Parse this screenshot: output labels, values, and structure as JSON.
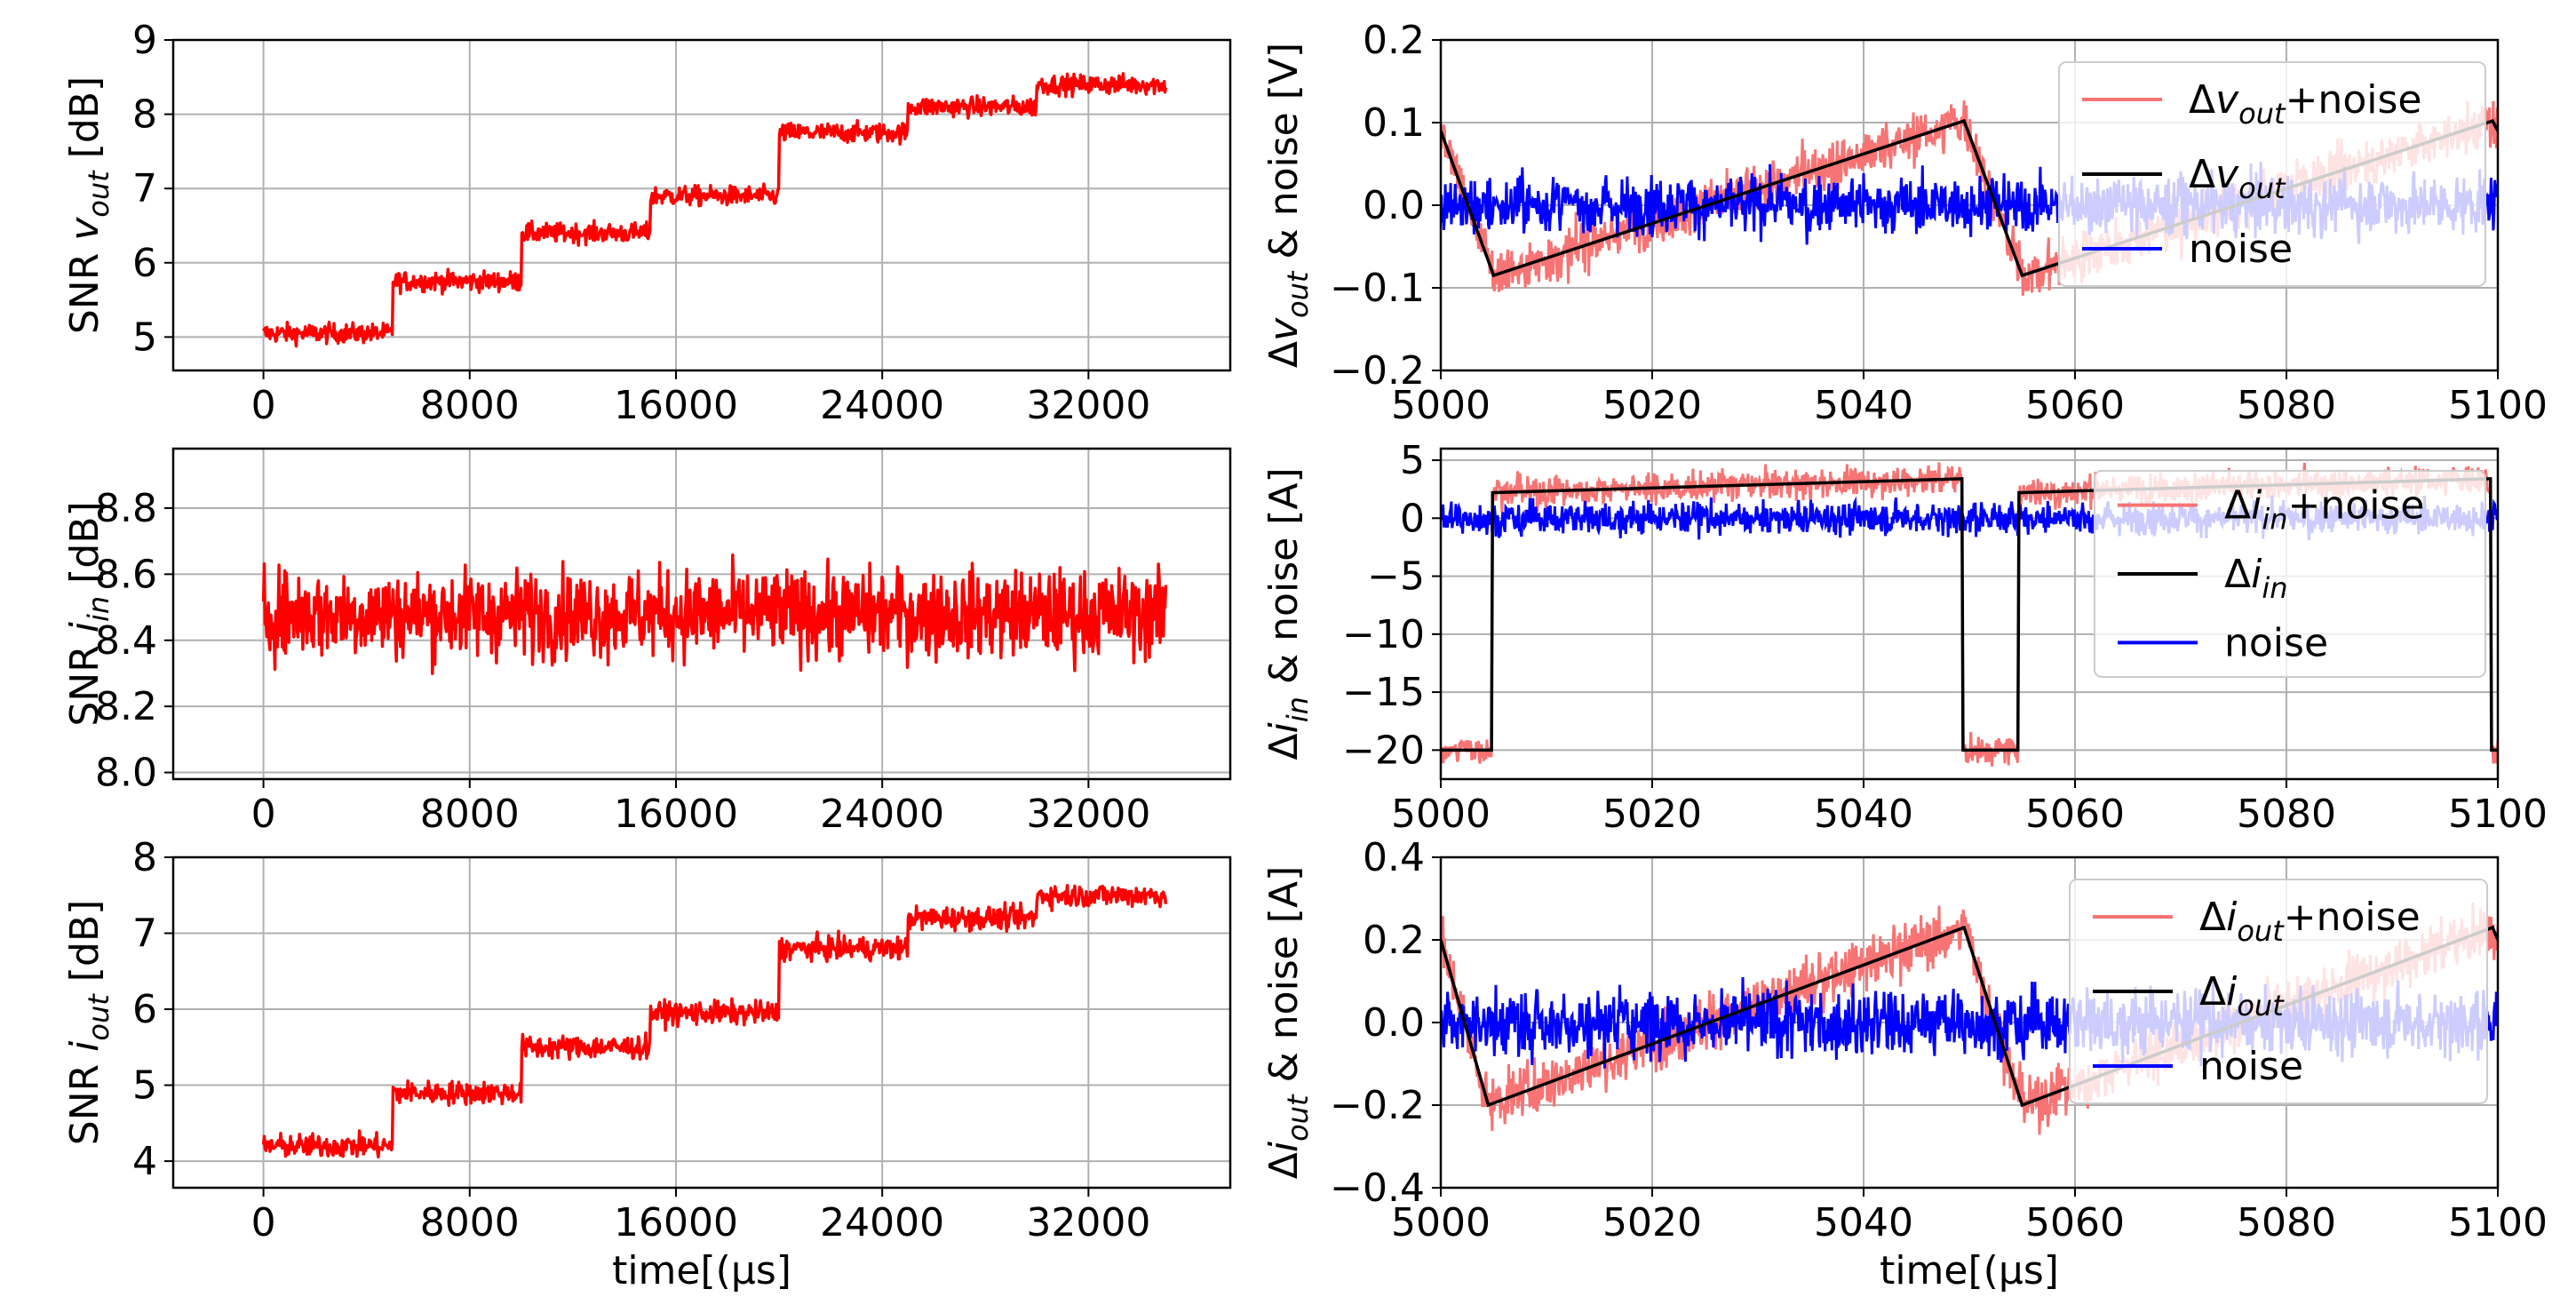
{
  "colors": {
    "snr": "#ff0000",
    "signal_noise": "#f87373",
    "signal": "#000000",
    "noise": "#0000ff",
    "grid": "#b0b0b0"
  },
  "chart_data": [
    {
      "id": "snr_vout",
      "type": "line",
      "ylabel_prefix": "SNR ",
      "ylabel_math": "v",
      "ylabel_sub": "out",
      "ylabel_suffix": " [dB]",
      "xlabel": "time[(μs]",
      "xlim": [
        -3500,
        37500
      ],
      "ylim": [
        4.55,
        9.0
      ],
      "xticks": [
        0,
        8000,
        16000,
        24000,
        32000
      ],
      "yticks": [
        5,
        6,
        7,
        8,
        9
      ],
      "series": [
        {
          "name": "SNR",
          "color": "#ff0000",
          "step_times": [
            0,
            5000,
            10000,
            15000,
            20000,
            25000,
            30000,
            35000
          ],
          "step_levels": [
            5.05,
            5.75,
            6.4,
            6.9,
            7.75,
            8.1,
            8.4
          ],
          "noise_amp": 0.13
        }
      ]
    },
    {
      "id": "dvout",
      "type": "line",
      "ylabel_prefix": "Δ",
      "ylabel_math": "v",
      "ylabel_sub": "out",
      "ylabel_suffix": " & noise [V]",
      "xlabel": "time[(μs]",
      "xlim": [
        5000,
        5100
      ],
      "ylim": [
        -0.2,
        0.2
      ],
      "xticks": [
        5000,
        5020,
        5040,
        5060,
        5080,
        5100
      ],
      "yticks": [
        -0.2,
        -0.1,
        0.0,
        0.1,
        0.2
      ],
      "ytick_labels": [
        "−0.2",
        "−0.1",
        "0.0",
        "0.1",
        "0.2"
      ],
      "signal_points": [
        [
          5000,
          0.09
        ],
        [
          5005,
          -0.085
        ],
        [
          5049.5,
          0.102
        ],
        [
          5055,
          -0.085
        ],
        [
          5099.5,
          0.102
        ],
        [
          5100,
          0.09
        ]
      ],
      "signal_noise_amp": 0.03,
      "noise_amp": 0.035,
      "legend": [
        {
          "name": "Δv_out+noise",
          "pre": "Δ",
          "math": "v",
          "sub": "out",
          "post": "+noise",
          "color": "#f87373"
        },
        {
          "name": "Δv_out",
          "pre": "Δ",
          "math": "v",
          "sub": "out",
          "post": "",
          "color": "#000000"
        },
        {
          "name": "noise",
          "pre": "noise",
          "math": "",
          "sub": "",
          "post": "",
          "color": "#0000ff"
        }
      ]
    },
    {
      "id": "snr_iin",
      "type": "line",
      "ylabel_prefix": "SNR ",
      "ylabel_math": "i",
      "ylabel_sub": "in",
      "ylabel_suffix": " [dB]",
      "xlabel": "time[(μs]",
      "xlim": [
        -3500,
        37500
      ],
      "ylim": [
        7.98,
        8.98
      ],
      "xticks": [
        0,
        8000,
        16000,
        24000,
        32000
      ],
      "yticks": [
        8.0,
        8.2,
        8.4,
        8.6,
        8.8
      ],
      "ytick_labels": [
        "8.0",
        "8.2",
        "8.4",
        "8.6",
        "8.8"
      ],
      "series": [
        {
          "name": "SNR",
          "color": "#ff0000",
          "step_times": [
            0,
            35000
          ],
          "step_levels": [
            8.48
          ],
          "noise_amp": 0.13
        }
      ]
    },
    {
      "id": "diin",
      "type": "line",
      "ylabel_prefix": "Δ",
      "ylabel_math": "i",
      "ylabel_sub": "in",
      "ylabel_suffix": " & noise [A]",
      "xlabel": "time[(μs]",
      "xlim": [
        5000,
        5100
      ],
      "ylim": [
        -22.5,
        6
      ],
      "xticks": [
        5000,
        5020,
        5040,
        5060,
        5080,
        5100
      ],
      "yticks": [
        -20,
        -15,
        -10,
        -5,
        0,
        5
      ],
      "ytick_labels": [
        "−20",
        "−15",
        "−10",
        "−5",
        "0",
        "5"
      ],
      "signal_points": [
        [
          5000,
          -20
        ],
        [
          5004.8,
          -20
        ],
        [
          5004.9,
          2.2
        ],
        [
          5049.3,
          3.4
        ],
        [
          5049.4,
          -20
        ],
        [
          5054.6,
          -20
        ],
        [
          5054.7,
          2.2
        ],
        [
          5099.3,
          3.4
        ],
        [
          5099.4,
          -20
        ],
        [
          5100,
          -20
        ]
      ],
      "signal_noise_amp": 1.3,
      "noise_amp": 1.4,
      "legend": [
        {
          "name": "Δi_in+noise",
          "pre": "Δ",
          "math": "i",
          "sub": "in",
          "post": "+noise",
          "color": "#f87373"
        },
        {
          "name": "Δi_in",
          "pre": "Δ",
          "math": "i",
          "sub": "in",
          "post": "",
          "color": "#000000"
        },
        {
          "name": "noise",
          "pre": "noise",
          "math": "",
          "sub": "",
          "post": "",
          "color": "#0000ff"
        }
      ]
    },
    {
      "id": "snr_iout",
      "type": "line",
      "ylabel_prefix": "SNR ",
      "ylabel_math": "i",
      "ylabel_sub": "out",
      "ylabel_suffix": " [dB]",
      "xlabel": "time[(μs]",
      "xlim": [
        -3500,
        37500
      ],
      "ylim": [
        3.65,
        8.0
      ],
      "xticks": [
        0,
        8000,
        16000,
        24000,
        32000
      ],
      "yticks": [
        4,
        5,
        6,
        7,
        8
      ],
      "series": [
        {
          "name": "SNR",
          "color": "#ff0000",
          "step_times": [
            0,
            5000,
            10000,
            15000,
            20000,
            25000,
            30000,
            35000
          ],
          "step_levels": [
            4.2,
            4.9,
            5.5,
            5.95,
            6.8,
            7.2,
            7.5
          ],
          "noise_amp": 0.15
        }
      ]
    },
    {
      "id": "diout",
      "type": "line",
      "ylabel_prefix": "Δ",
      "ylabel_math": "i",
      "ylabel_sub": "out",
      "ylabel_suffix": " & noise [A]",
      "xlabel": "time[(μs]",
      "xlim": [
        5000,
        5100
      ],
      "ylim": [
        -0.4,
        0.4
      ],
      "xticks": [
        5000,
        5020,
        5040,
        5060,
        5080,
        5100
      ],
      "yticks": [
        -0.4,
        -0.2,
        0.0,
        0.2,
        0.4
      ],
      "ytick_labels": [
        "−0.4",
        "−0.2",
        "0.0",
        "0.2",
        "0.4"
      ],
      "signal_points": [
        [
          5000,
          0.2
        ],
        [
          5004.5,
          -0.2
        ],
        [
          5049.5,
          0.23
        ],
        [
          5055,
          -0.2
        ],
        [
          5099.5,
          0.23
        ],
        [
          5100,
          0.2
        ]
      ],
      "signal_noise_amp": 0.065,
      "noise_amp": 0.08,
      "legend": [
        {
          "name": "Δi_out+noise",
          "pre": "Δ",
          "math": "i",
          "sub": "out",
          "post": "+noise",
          "color": "#f87373"
        },
        {
          "name": "Δi_out",
          "pre": "Δ",
          "math": "i",
          "sub": "out",
          "post": "",
          "color": "#000000"
        },
        {
          "name": "noise",
          "pre": "noise",
          "math": "",
          "sub": "",
          "post": "",
          "color": "#0000ff"
        }
      ]
    }
  ]
}
